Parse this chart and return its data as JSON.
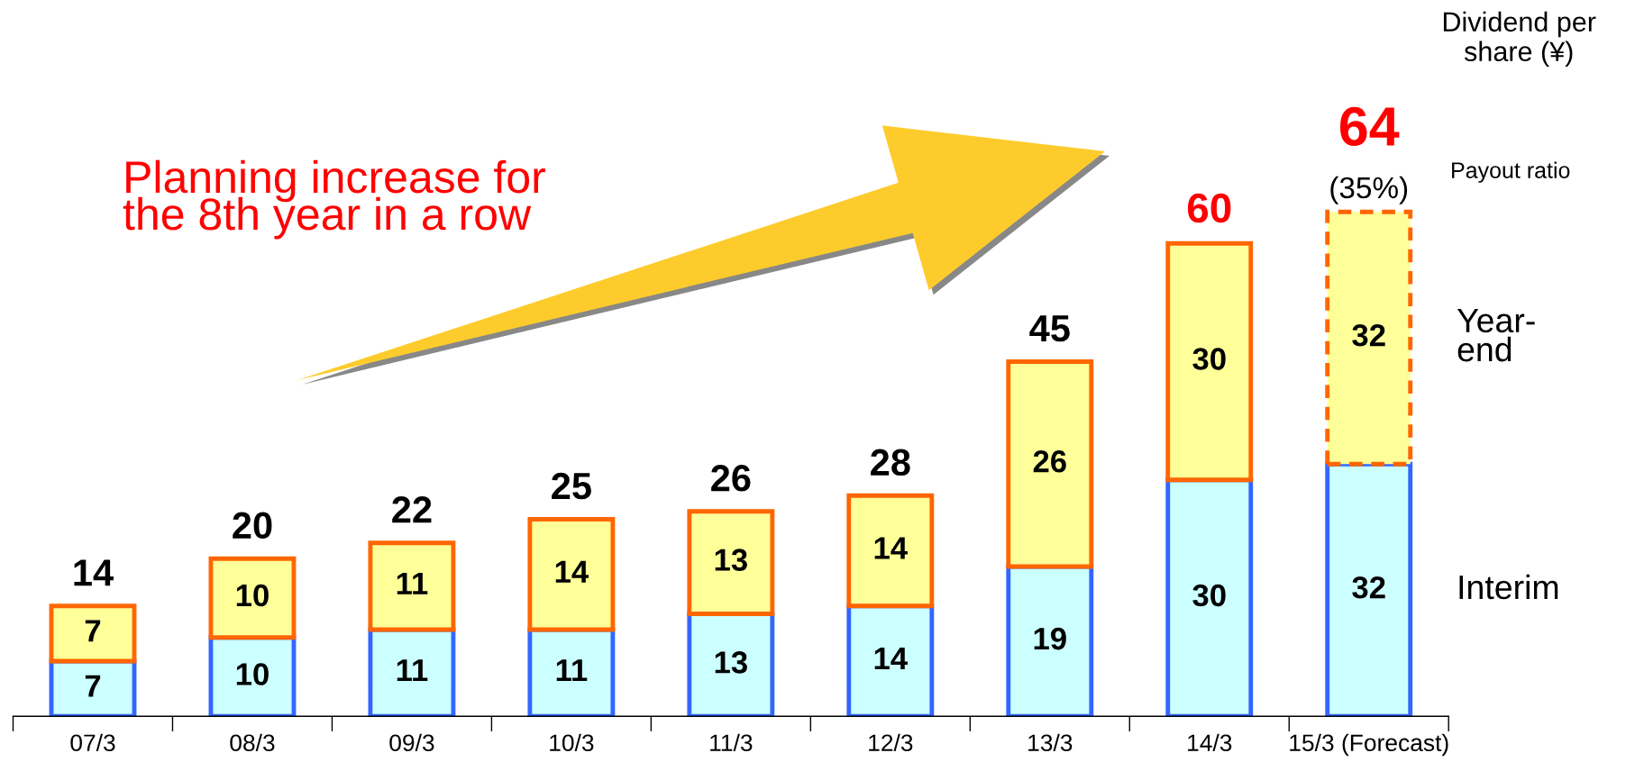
{
  "chart_data": {
    "type": "bar",
    "stacked": true,
    "categories": [
      "07/3",
      "08/3",
      "09/3",
      "10/3",
      "11/3",
      "12/3",
      "13/3",
      "14/3",
      "15/3 (Forecast)"
    ],
    "series": [
      {
        "name": "Interim",
        "color": "#ccffff",
        "values": [
          7,
          10,
          11,
          11,
          13,
          14,
          19,
          30,
          32
        ]
      },
      {
        "name": "Year-\nend",
        "color": "#ffff99",
        "values": [
          7,
          10,
          11,
          14,
          13,
          14,
          26,
          30,
          32
        ]
      }
    ],
    "data_labels": true,
    "totals": [
      "14",
      "20",
      "22",
      "25",
      "26",
      "28",
      "45",
      "60",
      "64"
    ],
    "annotations": [
      "Planning increase for\nthe 8th year in a row",
      {
        "text": "(35%)",
        "x": "15/3 (Forecast)",
        "y": 64
      },
      "Dividend per\nshare (¥)",
      "Payout ratio"
    ],
    "legend": false,
    "grid": false
  }
}
